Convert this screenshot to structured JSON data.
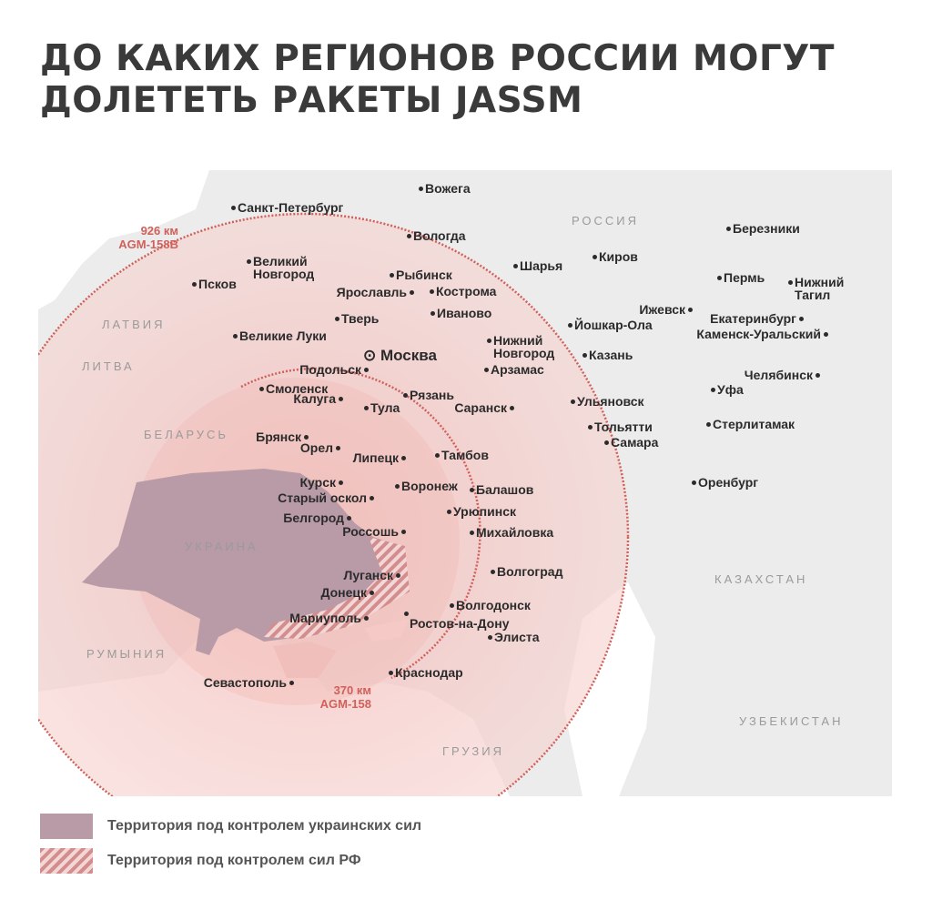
{
  "title": "ДО КАКИХ РЕГИОНОВ РОССИИ МОГУТ ДОЛЕТЕТЬ РАКЕТЫ JASSM",
  "colors": {
    "ukraine_control": "#b99ba7",
    "russia_control_hatch": "#d48d8d",
    "range_fill": "#f4c9c6",
    "range_line": "#d0605a",
    "land": "#ececec",
    "sea": "#ffffff"
  },
  "ranges": [
    {
      "distance": "926 км",
      "missile": "AGM-158B"
    },
    {
      "distance": "370 км",
      "missile": "AGM-158"
    }
  ],
  "countries": [
    "РОССИЯ",
    "ЛАТВИЯ",
    "ЛИТВА",
    "БЕЛАРУСЬ",
    "УКРАИНА",
    "РУМЫНИЯ",
    "КАЗАХСТАН",
    "УЗБЕКИСТАН",
    "ГРУЗИЯ"
  ],
  "capital": "Москва",
  "cities": [
    "Вожега",
    "Санкт-Петербург",
    "Вологда",
    "Великий Новгород",
    "Рыбинск",
    "Ярославль",
    "Кострома",
    "Псков",
    "Тверь",
    "Иваново",
    "Великие Луки",
    "Подольск",
    "Смоленск",
    "Калуга",
    "Тула",
    "Рязань",
    "Саранск",
    "Арзамас",
    "Нижний Новгород",
    "Йошкар-Ола",
    "Казань",
    "Ульяновск",
    "Тольятти",
    "Самара",
    "Шарья",
    "Киров",
    "Березники",
    "Пермь",
    "Нижний Тагил",
    "Ижевск",
    "Екатеринбург",
    "Каменск-Уральский",
    "Челябинск",
    "Уфа",
    "Стерлитамак",
    "Оренбург",
    "Брянск",
    "Орел",
    "Липецк",
    "Тамбов",
    "Курск",
    "Воронеж",
    "Балашов",
    "Старый оскол",
    "Урюпинск",
    "Белгород",
    "Россошь",
    "Михайловка",
    "Волгоград",
    "Луганск",
    "Донецк",
    "Волгодонск",
    "Мариуполь",
    "Ростов-на-Дону",
    "Элиста",
    "Краснодар",
    "Севастополь"
  ],
  "legend": [
    {
      "label": "Территория под контролем украинских сил",
      "pattern": "solid"
    },
    {
      "label": "Территория под контролем сил РФ",
      "pattern": "hatched"
    }
  ]
}
